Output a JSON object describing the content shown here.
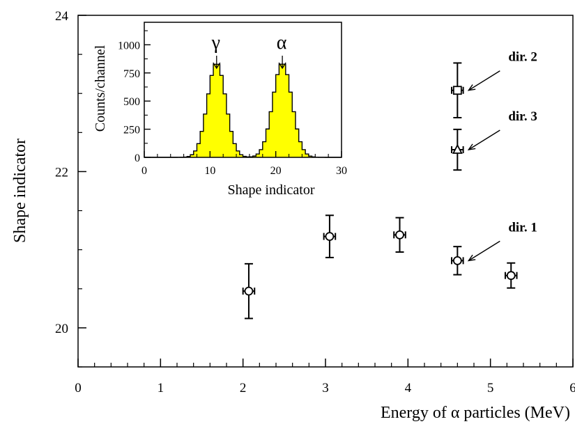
{
  "chart_data": [
    {
      "type": "scatter",
      "title": "",
      "xlabel": "Energy of α particles (MeV)",
      "ylabel": "Shape indicator",
      "xlim": [
        0,
        6
      ],
      "ylim": [
        19.5,
        24
      ],
      "x_ticks": [
        "0",
        "1",
        "2",
        "3",
        "4",
        "5",
        "6"
      ],
      "y_ticks": [
        "20",
        "22",
        "24"
      ],
      "series": [
        {
          "marker": "circle",
          "points": [
            {
              "x": 2.07,
              "y": 20.47,
              "y_err": 0.35,
              "x_err": 0.07
            },
            {
              "x": 3.05,
              "y": 21.17,
              "y_err": 0.27,
              "x_err": 0.07
            },
            {
              "x": 3.9,
              "y": 21.19,
              "y_err": 0.22,
              "x_err": 0.07
            },
            {
              "x": 4.6,
              "y": 20.86,
              "y_err": 0.18,
              "x_err": 0.07
            },
            {
              "x": 5.25,
              "y": 20.67,
              "y_err": 0.16,
              "x_err": 0.07
            }
          ]
        },
        {
          "marker": "square",
          "points": [
            {
              "x": 4.6,
              "y": 23.04,
              "y_err": 0.35,
              "x_err": 0.07
            }
          ]
        },
        {
          "marker": "triangle",
          "points": [
            {
              "x": 4.6,
              "y": 22.28,
              "y_err": 0.26,
              "x_err": 0.07
            }
          ]
        }
      ],
      "annotations": [
        {
          "text": "dir. 2",
          "x": 4.6,
          "y": 23.04
        },
        {
          "text": "dir. 3",
          "x": 4.6,
          "y": 22.28
        },
        {
          "text": "dir. 1",
          "x": 4.6,
          "y": 20.86
        }
      ]
    },
    {
      "type": "area",
      "title": "",
      "xlabel": "Shape indicator",
      "ylabel": "Counts/channel",
      "xlim": [
        0,
        30
      ],
      "ylim": [
        0,
        1200
      ],
      "x_ticks": [
        "0",
        "10",
        "20",
        "30"
      ],
      "y_ticks": [
        "0",
        "250",
        "500",
        "750",
        "1000"
      ],
      "fill_color": "#ffff00",
      "series": [
        {
          "peak_label": "γ",
          "center": 11,
          "sigma": 1.4,
          "amplitude": 840
        },
        {
          "peak_label": "α",
          "center": 21,
          "sigma": 1.45,
          "amplitude": 840
        }
      ]
    }
  ]
}
